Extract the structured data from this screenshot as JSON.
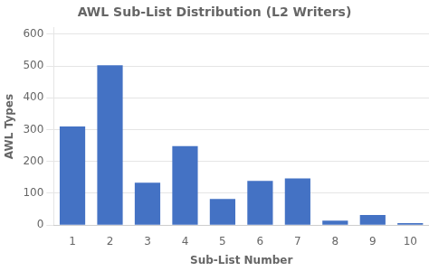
{
  "chart_data": {
    "type": "bar",
    "title": "AWL Sub-List Distribution (L2 Writers)",
    "xlabel": "Sub-List Number",
    "ylabel": "AWL Types",
    "categories": [
      1,
      2,
      3,
      4,
      5,
      6,
      7,
      8,
      9,
      10
    ],
    "values": [
      310,
      502,
      133,
      248,
      82,
      139,
      147,
      14,
      32,
      6
    ],
    "color": "#4472C4",
    "ylim": [
      0,
      620
    ],
    "yticks": [
      0,
      100,
      200,
      300,
      400,
      500,
      600
    ],
    "grid": true
  }
}
